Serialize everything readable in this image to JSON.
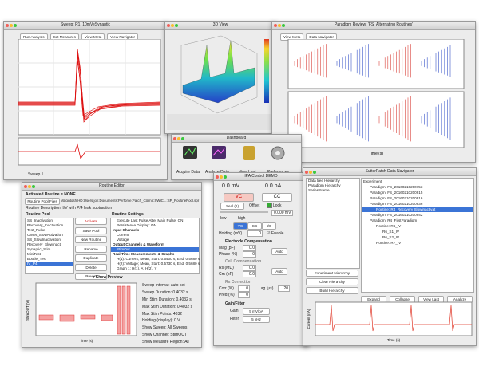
{
  "sweep_window": {
    "title": "Sweep: R1_10mVeSynaptic",
    "toolbar": [
      "Run Analysis",
      "Set Measures",
      "View Meta",
      "View Navigator"
    ],
    "footer": "Sweep 1"
  },
  "view3d_window": {
    "title": "3D View"
  },
  "paradigm_window": {
    "title": "Paradigm Review: 'FS_Alternating Routines'",
    "toolbar": [
      "View Meta",
      "Data Navigator"
    ],
    "x_label": "Time (s)"
  },
  "dashboard": {
    "title": "Dashboard",
    "items": [
      "Acquire Data",
      "Analyze Data",
      "View Last",
      "Preferences"
    ]
  },
  "routine_editor": {
    "title": "Routine Editor",
    "activated": "Activated Routine = NONE",
    "pool_files": "Routine Pool Files",
    "pool_path": "Macintosh HD:Users:jon:Documents:Perforce:Patch_Clamp:SWIC...:SP_RoutinePool.spr",
    "description": "Routine Description: I/V with P/4 leak subtraction",
    "pool_header": "Routine Pool",
    "settings_header": "Routine Settings",
    "pool": [
      "SS_Inactivation",
      "Recovery_Inactivation",
      "Test_Pulse",
      "Onset_SlowActivation",
      "SS_SlowInactivation",
      "Recovery_SlowInact",
      "Synaptic_Stim",
      "MiniTest",
      "Bootle_Test",
      "IV_P4"
    ],
    "buttons": [
      "Activate",
      "Save Pool",
      "New Routine",
      "Rename",
      "Duplicate",
      "Delete",
      "Revert"
    ],
    "settings": [
      "Execute Last Pulse After Main Pulse: ON",
      "Persistence Display: ON",
      "Input Channels",
      "Current",
      "Voltage",
      "Output Channels & Waveform",
      "StimOut",
      "Real-Time Measurements & Graphs",
      "H(1): Current; Mean, Start: 0.5400 s, End: 0.5680 s",
      "H(2): Voltage; Mean, Start: 0.5730 s, End: 0.5680 s",
      "Graph 1: H(1), A: H(2), Y"
    ],
    "show_preview": "Show Preview",
    "y_label": "StimOUT (V)",
    "x_label": "Time (s)",
    "preview_info": [
      "Sweep Interval: auto set",
      "Sweep Duration: 0.4032 s",
      "Min Stim Duration: 0.4032 s",
      "Max Stim Duration: 0.4032 s",
      "Max Stim Points: 4032",
      "Holding (display): 0 V",
      "Show Sweep: All Sweeps",
      "Show Channel: StimOUT",
      "Show Measure Region: All"
    ]
  },
  "ipa_control": {
    "title": "IPA Control DEMO",
    "voltage": "0.0 mV",
    "current": "0.0 pA",
    "vc": "VC",
    "cc": "CC",
    "seal": "Seal (1)",
    "offset": "Offset",
    "lock": "Lock",
    "offset_value": "0.000 mV",
    "low": "low",
    "high": "high",
    "tabs": [
      "VC",
      "CC",
      "I/0"
    ],
    "holding_label": "Holding (mV)",
    "holding_value": "0",
    "enable": "Enable",
    "electrode_comp": "Electrode Compensation",
    "mag_label": "Mag (pF)",
    "mag_value": "0.0",
    "phase_label": "Phase (%)",
    "phase_value": "0",
    "auto": "Auto",
    "cell_comp": "Cell Compensation",
    "rs_label": "Rs (MΩ)",
    "rs_value": "0.0",
    "cm_label": "Cm (pF)",
    "cm_value": "0.0",
    "rs_corr": "Rs Correction",
    "corr_label": "Corr (%)",
    "corr_value": "0",
    "lag_label": "Lag (µs)",
    "lag_value": "20",
    "pred_label": "Pred (%)",
    "pred_value": "0",
    "gain_filter": "Gain/Filter",
    "gain_label": "Gain",
    "gain_value": "5 mV/pA",
    "filter_label": "Filter",
    "filter_value": "5 kHz"
  },
  "data_navigator": {
    "title": "SutterPatch Data Navigator",
    "hierarchy": [
      "Data tree Hierarchy",
      "Paradigm Hierarchy",
      "Series Name"
    ],
    "tree": [
      "Experiment",
      "Paradigm: FS_20160210200753",
      "Paradigm: FS_20160210200915",
      "Paradigm: FS_20160210200916",
      "Paradigm: FS_20160210200936",
      "Routine: R4_Recovery Slowinactivat",
      "Paradigm: FS_20160210200942",
      "Paradigm: R4_FirstParadigm",
      "Routine: R6_IV",
      "R6_S1_IV",
      "R6_S2_IV",
      "Routine: R7_IV"
    ],
    "left_buttons": [
      "Experiment Hierarchy",
      "Clear Hierarchy",
      "Build Hierarchy"
    ],
    "bottom_buttons": [
      "Expand",
      "Collapse",
      "View Last",
      "Analyze"
    ],
    "y_label": "Current (nA)",
    "x_label": "Time (s)"
  }
}
